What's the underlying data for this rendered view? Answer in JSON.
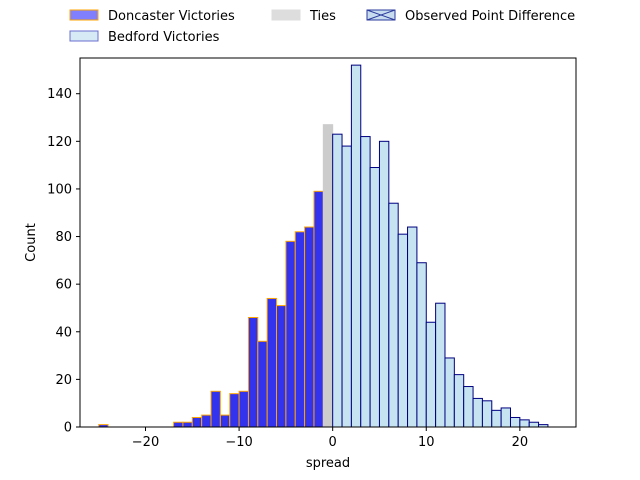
{
  "chart_data": {
    "type": "bar",
    "xlabel": "spread",
    "ylabel": "Count",
    "xlim": [
      -27,
      26
    ],
    "ylim": [
      0,
      155
    ],
    "bin_width": 1,
    "x_ticks": [
      -20,
      -10,
      0,
      10,
      20
    ],
    "x_tick_labels": [
      "−20",
      "−10",
      "0",
      "10",
      "20"
    ],
    "y_ticks": [
      0,
      20,
      40,
      60,
      80,
      100,
      120,
      140
    ],
    "y_tick_labels": [
      "0",
      "20",
      "40",
      "60",
      "80",
      "100",
      "120",
      "140"
    ],
    "legend": {
      "placement": "above-plot",
      "entries": [
        {
          "label": "Doncaster Victories",
          "fill": "#8080ff",
          "stroke": "#ffa500"
        },
        {
          "label": "Bedford Victories",
          "fill": "#d6eaf5",
          "stroke": "#6a6fcf"
        },
        {
          "label": "Ties",
          "fill": "#dddddd",
          "stroke": "#dddddd"
        },
        {
          "label": "Observed Point Difference",
          "fill": "#c7dcef",
          "stroke": "#2b3a9c",
          "marker": "x"
        }
      ]
    },
    "series": [
      {
        "name": "Doncaster Victories",
        "fill": "#3333ee",
        "stroke": "#ffa500",
        "bins": [
          {
            "x": -25,
            "value": 1
          },
          {
            "x": -17,
            "value": 2
          },
          {
            "x": -16,
            "value": 2
          },
          {
            "x": -15,
            "value": 4
          },
          {
            "x": -14,
            "value": 5
          },
          {
            "x": -13,
            "value": 15
          },
          {
            "x": -12,
            "value": 5
          },
          {
            "x": -11,
            "value": 14
          },
          {
            "x": -10,
            "value": 15
          },
          {
            "x": -9,
            "value": 46
          },
          {
            "x": -8,
            "value": 36
          },
          {
            "x": -7,
            "value": 54
          },
          {
            "x": -6,
            "value": 51
          },
          {
            "x": -5,
            "value": 78
          },
          {
            "x": -4,
            "value": 82
          },
          {
            "x": -3,
            "value": 84
          },
          {
            "x": -2,
            "value": 99
          }
        ]
      },
      {
        "name": "Ties",
        "fill": "#cccccc",
        "stroke": "#cccccc",
        "bins": [
          {
            "x": -1,
            "value": 127
          }
        ]
      },
      {
        "name": "Bedford Victories",
        "fill": "#c5e3f0",
        "stroke": "#000080",
        "bins": [
          {
            "x": 0,
            "value": 123
          },
          {
            "x": 1,
            "value": 118
          },
          {
            "x": 2,
            "value": 152
          },
          {
            "x": 3,
            "value": 122
          },
          {
            "x": 4,
            "value": 109
          },
          {
            "x": 5,
            "value": 120
          },
          {
            "x": 6,
            "value": 94
          },
          {
            "x": 7,
            "value": 81
          },
          {
            "x": 8,
            "value": 84
          },
          {
            "x": 9,
            "value": 69
          },
          {
            "x": 10,
            "value": 44
          },
          {
            "x": 11,
            "value": 52
          },
          {
            "x": 12,
            "value": 29
          },
          {
            "x": 13,
            "value": 22
          },
          {
            "x": 14,
            "value": 17
          },
          {
            "x": 15,
            "value": 12
          },
          {
            "x": 16,
            "value": 11
          },
          {
            "x": 17,
            "value": 7
          },
          {
            "x": 18,
            "value": 8
          },
          {
            "x": 19,
            "value": 4
          },
          {
            "x": 20,
            "value": 3
          },
          {
            "x": 21,
            "value": 2
          },
          {
            "x": 22,
            "value": 1
          }
        ]
      }
    ]
  }
}
